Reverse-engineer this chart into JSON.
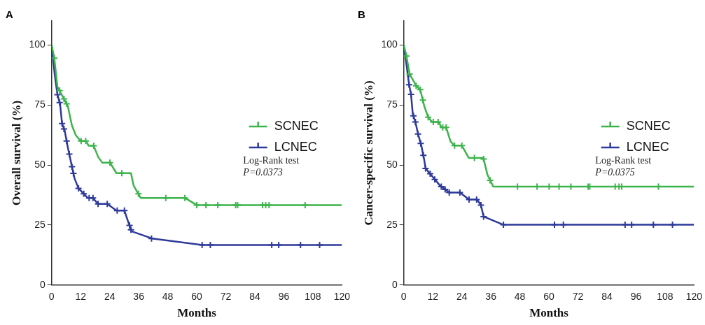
{
  "chart_data": [
    {
      "type": "line",
      "title": "A",
      "xlabel": "Months",
      "ylabel": "Overall survival (%)",
      "xlim": [
        0,
        120
      ],
      "xticks": [
        0,
        12,
        24,
        36,
        48,
        60,
        72,
        84,
        96,
        108,
        120
      ],
      "ylim": [
        0,
        110
      ],
      "yticks": [
        0,
        25,
        50,
        75,
        100
      ],
      "grid": false,
      "legend": "right",
      "annotations": [
        "Log-Rank test",
        "P=0.0373"
      ],
      "series": [
        {
          "name": "SCNEC",
          "type": "line",
          "marker": "none",
          "color": "#3cb44b",
          "x": [
            0,
            1.1,
            2.4,
            4.6,
            6.7,
            8.4,
            10,
            12,
            14.2,
            15.3,
            17.4,
            19.2,
            20.9,
            24.1,
            26.8,
            32.8,
            33.9,
            36.8,
            55.1,
            60,
            120
          ],
          "values": [
            100,
            94.5,
            82.5,
            78.5,
            74.5,
            66.4,
            62.4,
            60,
            60,
            58,
            58,
            53.4,
            51,
            51,
            46.6,
            46.6,
            41.4,
            36.3,
            36.3,
            33.3,
            33.3
          ]
        },
        {
          "name": "LCNEC",
          "type": "line",
          "marker": "none",
          "color": "#2e3a9a",
          "x": [
            0,
            1.3,
            2.4,
            3.5,
            4.3,
            5.4,
            6.7,
            8.4,
            9.5,
            11.1,
            14.9,
            17,
            19.2,
            23,
            26.8,
            30.1,
            31.7,
            33,
            41.5,
            62.2,
            120
          ],
          "values": [
            100,
            87.4,
            79.3,
            75.3,
            67.3,
            64.3,
            57.3,
            49.3,
            44.3,
            40.3,
            36.3,
            36.3,
            33.8,
            33.8,
            31,
            31,
            26.2,
            22.4,
            19.4,
            16.7,
            16.7
          ]
        },
        {
          "type": "scatter",
          "marker": "cross",
          "color": "#3cb44b",
          "x": [
            1.1,
            3.3,
            5.1,
            6.2,
            12.2,
            14.1,
            17.4,
            24.1,
            29,
            35.9,
            47.2,
            55.1,
            60,
            63.8,
            68.7,
            76.1,
            76.9,
            87.2,
            88.5,
            89.9,
            104.8
          ],
          "values": [
            94.5,
            81,
            77.5,
            75.5,
            60,
            60,
            58,
            51,
            46.6,
            38,
            36.3,
            36.3,
            33.3,
            33.3,
            33.3,
            33.3,
            33.3,
            33.3,
            33.3,
            33.3,
            33.3
          ]
        },
        {
          "type": "scatter",
          "marker": "cross",
          "color": "#2e3a9a",
          "x": [
            2.4,
            3.3,
            4.3,
            5.1,
            6.2,
            7.3,
            8.4,
            9,
            11.1,
            13.3,
            15.5,
            17.1,
            19.2,
            23,
            27.1,
            30.1,
            32.2,
            32.8,
            41.3,
            62.2,
            65.6,
            91,
            93.9,
            102.9,
            110.8
          ],
          "values": [
            79.3,
            76,
            67.3,
            65,
            60,
            54.5,
            49.3,
            46.5,
            40.3,
            38,
            36.3,
            36.3,
            33.8,
            33.8,
            31,
            31,
            24.8,
            23,
            19.4,
            16.7,
            16.7,
            16.7,
            16.7,
            16.7,
            16.7
          ]
        }
      ]
    },
    {
      "type": "line",
      "title": "B",
      "xlabel": "Months",
      "ylabel": "Cancer-specific survival (%)",
      "xlim": [
        0,
        120
      ],
      "xticks": [
        0,
        12,
        24,
        36,
        48,
        60,
        72,
        84,
        96,
        108,
        120
      ],
      "ylim": [
        0,
        110
      ],
      "yticks": [
        0,
        25,
        50,
        75,
        100
      ],
      "grid": false,
      "legend": "right",
      "annotations": [
        "Log-Rank test",
        "P=0.0375"
      ],
      "series": [
        {
          "name": "SCNEC",
          "type": "line",
          "marker": "none",
          "color": "#3cb44b",
          "x": [
            0,
            1.1,
            2.4,
            5.2,
            6.8,
            8.5,
            10.1,
            11.7,
            14.5,
            15.5,
            17.5,
            19.3,
            20.9,
            24,
            26.9,
            32.9,
            34.6,
            37,
            120
          ],
          "values": [
            100,
            95.4,
            87.9,
            82.9,
            81.4,
            74.4,
            69.9,
            67.9,
            67.9,
            65.7,
            65.7,
            59.9,
            58.1,
            58.1,
            52.9,
            52.9,
            45.9,
            41,
            41
          ]
        },
        {
          "name": "LCNEC",
          "type": "line",
          "marker": "none",
          "color": "#2e3a9a",
          "x": [
            0,
            1.3,
            2.2,
            3,
            3.7,
            4.8,
            5.9,
            7.3,
            8.4,
            9,
            15,
            18.8,
            23.2,
            27,
            30.3,
            31.9,
            33,
            41.2,
            120
          ],
          "values": [
            100,
            90.4,
            83.4,
            79.4,
            71.4,
            67.9,
            62.9,
            57.9,
            52.4,
            48.6,
            41.4,
            38.5,
            38.5,
            35.6,
            35.6,
            33.3,
            28.5,
            25.1,
            25.1
          ]
        },
        {
          "type": "scatter",
          "marker": "cross",
          "color": "#3cb44b",
          "x": [
            1.1,
            2.4,
            5.1,
            6.8,
            7.9,
            10.1,
            12.2,
            14.2,
            16.1,
            17.5,
            21,
            24,
            29.2,
            33,
            35.7,
            47,
            55.1,
            60.1,
            64.2,
            69.1,
            76.2,
            76.9,
            87.4,
            89,
            90.1,
            105.3
          ],
          "values": [
            95.4,
            87.9,
            83,
            81.4,
            77,
            69.9,
            67.9,
            67.9,
            65.7,
            65.7,
            58.1,
            58.1,
            52.9,
            52.5,
            43.6,
            41,
            41,
            41,
            41,
            41,
            41,
            41,
            41,
            41,
            41,
            41
          ]
        },
        {
          "type": "scatter",
          "marker": "cross",
          "color": "#2e3a9a",
          "x": [
            2.2,
            3,
            4,
            4.8,
            5.9,
            7,
            8.1,
            9,
            10.9,
            12.8,
            15.5,
            17.1,
            18.8,
            23.2,
            27,
            30.1,
            31.9,
            33,
            41.2,
            62.3,
            66,
            91.5,
            94.2,
            103.2,
            111.1
          ],
          "values": [
            83.4,
            79.4,
            70.5,
            67.9,
            62.9,
            59,
            54,
            48.6,
            46.4,
            44,
            41,
            39.8,
            38.5,
            38.5,
            35.6,
            35.6,
            33.3,
            28.5,
            25.1,
            25.1,
            25.1,
            25.1,
            25.1,
            25.1,
            25.1
          ]
        }
      ]
    }
  ]
}
